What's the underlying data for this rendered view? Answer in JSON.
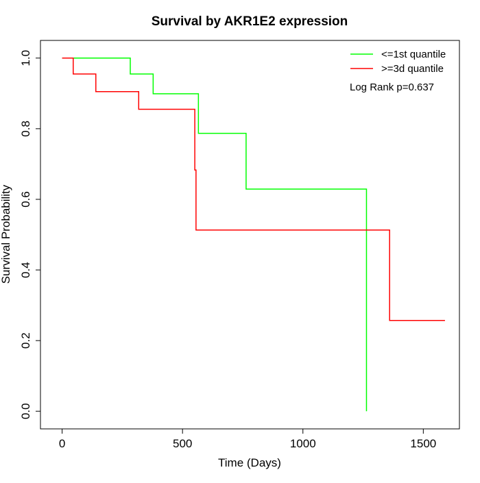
{
  "chart_data": {
    "type": "line",
    "subtype": "kaplan-meier-step",
    "title": "Survival by AKR1E2 expression",
    "xlabel": "Time (Days)",
    "ylabel": "Survival Probability",
    "xlim": [
      -90,
      1650
    ],
    "ylim": [
      -0.05,
      1.05
    ],
    "xticks": [
      0,
      500,
      1000,
      1500
    ],
    "xtick_labels": [
      "0",
      "500",
      "1000",
      "1500"
    ],
    "yticks": [
      0.0,
      0.2,
      0.4,
      0.6,
      0.8,
      1.0
    ],
    "ytick_labels": [
      "0.0",
      "0.2",
      "0.4",
      "0.6",
      "0.8",
      "1.0"
    ],
    "grid": false,
    "legend_position": "top-right",
    "series": [
      {
        "name": "<=1st quantile",
        "color": "#00ff00",
        "x": [
          0,
          283,
          378,
          566,
          764,
          1264
        ],
        "y": [
          1.0,
          0.955,
          0.899,
          0.787,
          0.629,
          0.0
        ]
      },
      {
        "name": ">=3d quantile",
        "color": "#ff0000",
        "x": [
          0,
          46,
          140,
          318,
          551,
          556,
          1360,
          1590
        ],
        "y": [
          1.0,
          0.955,
          0.905,
          0.855,
          0.683,
          0.513,
          0.257,
          0.257
        ]
      }
    ],
    "annotation": "Log Rank p=0.637"
  }
}
